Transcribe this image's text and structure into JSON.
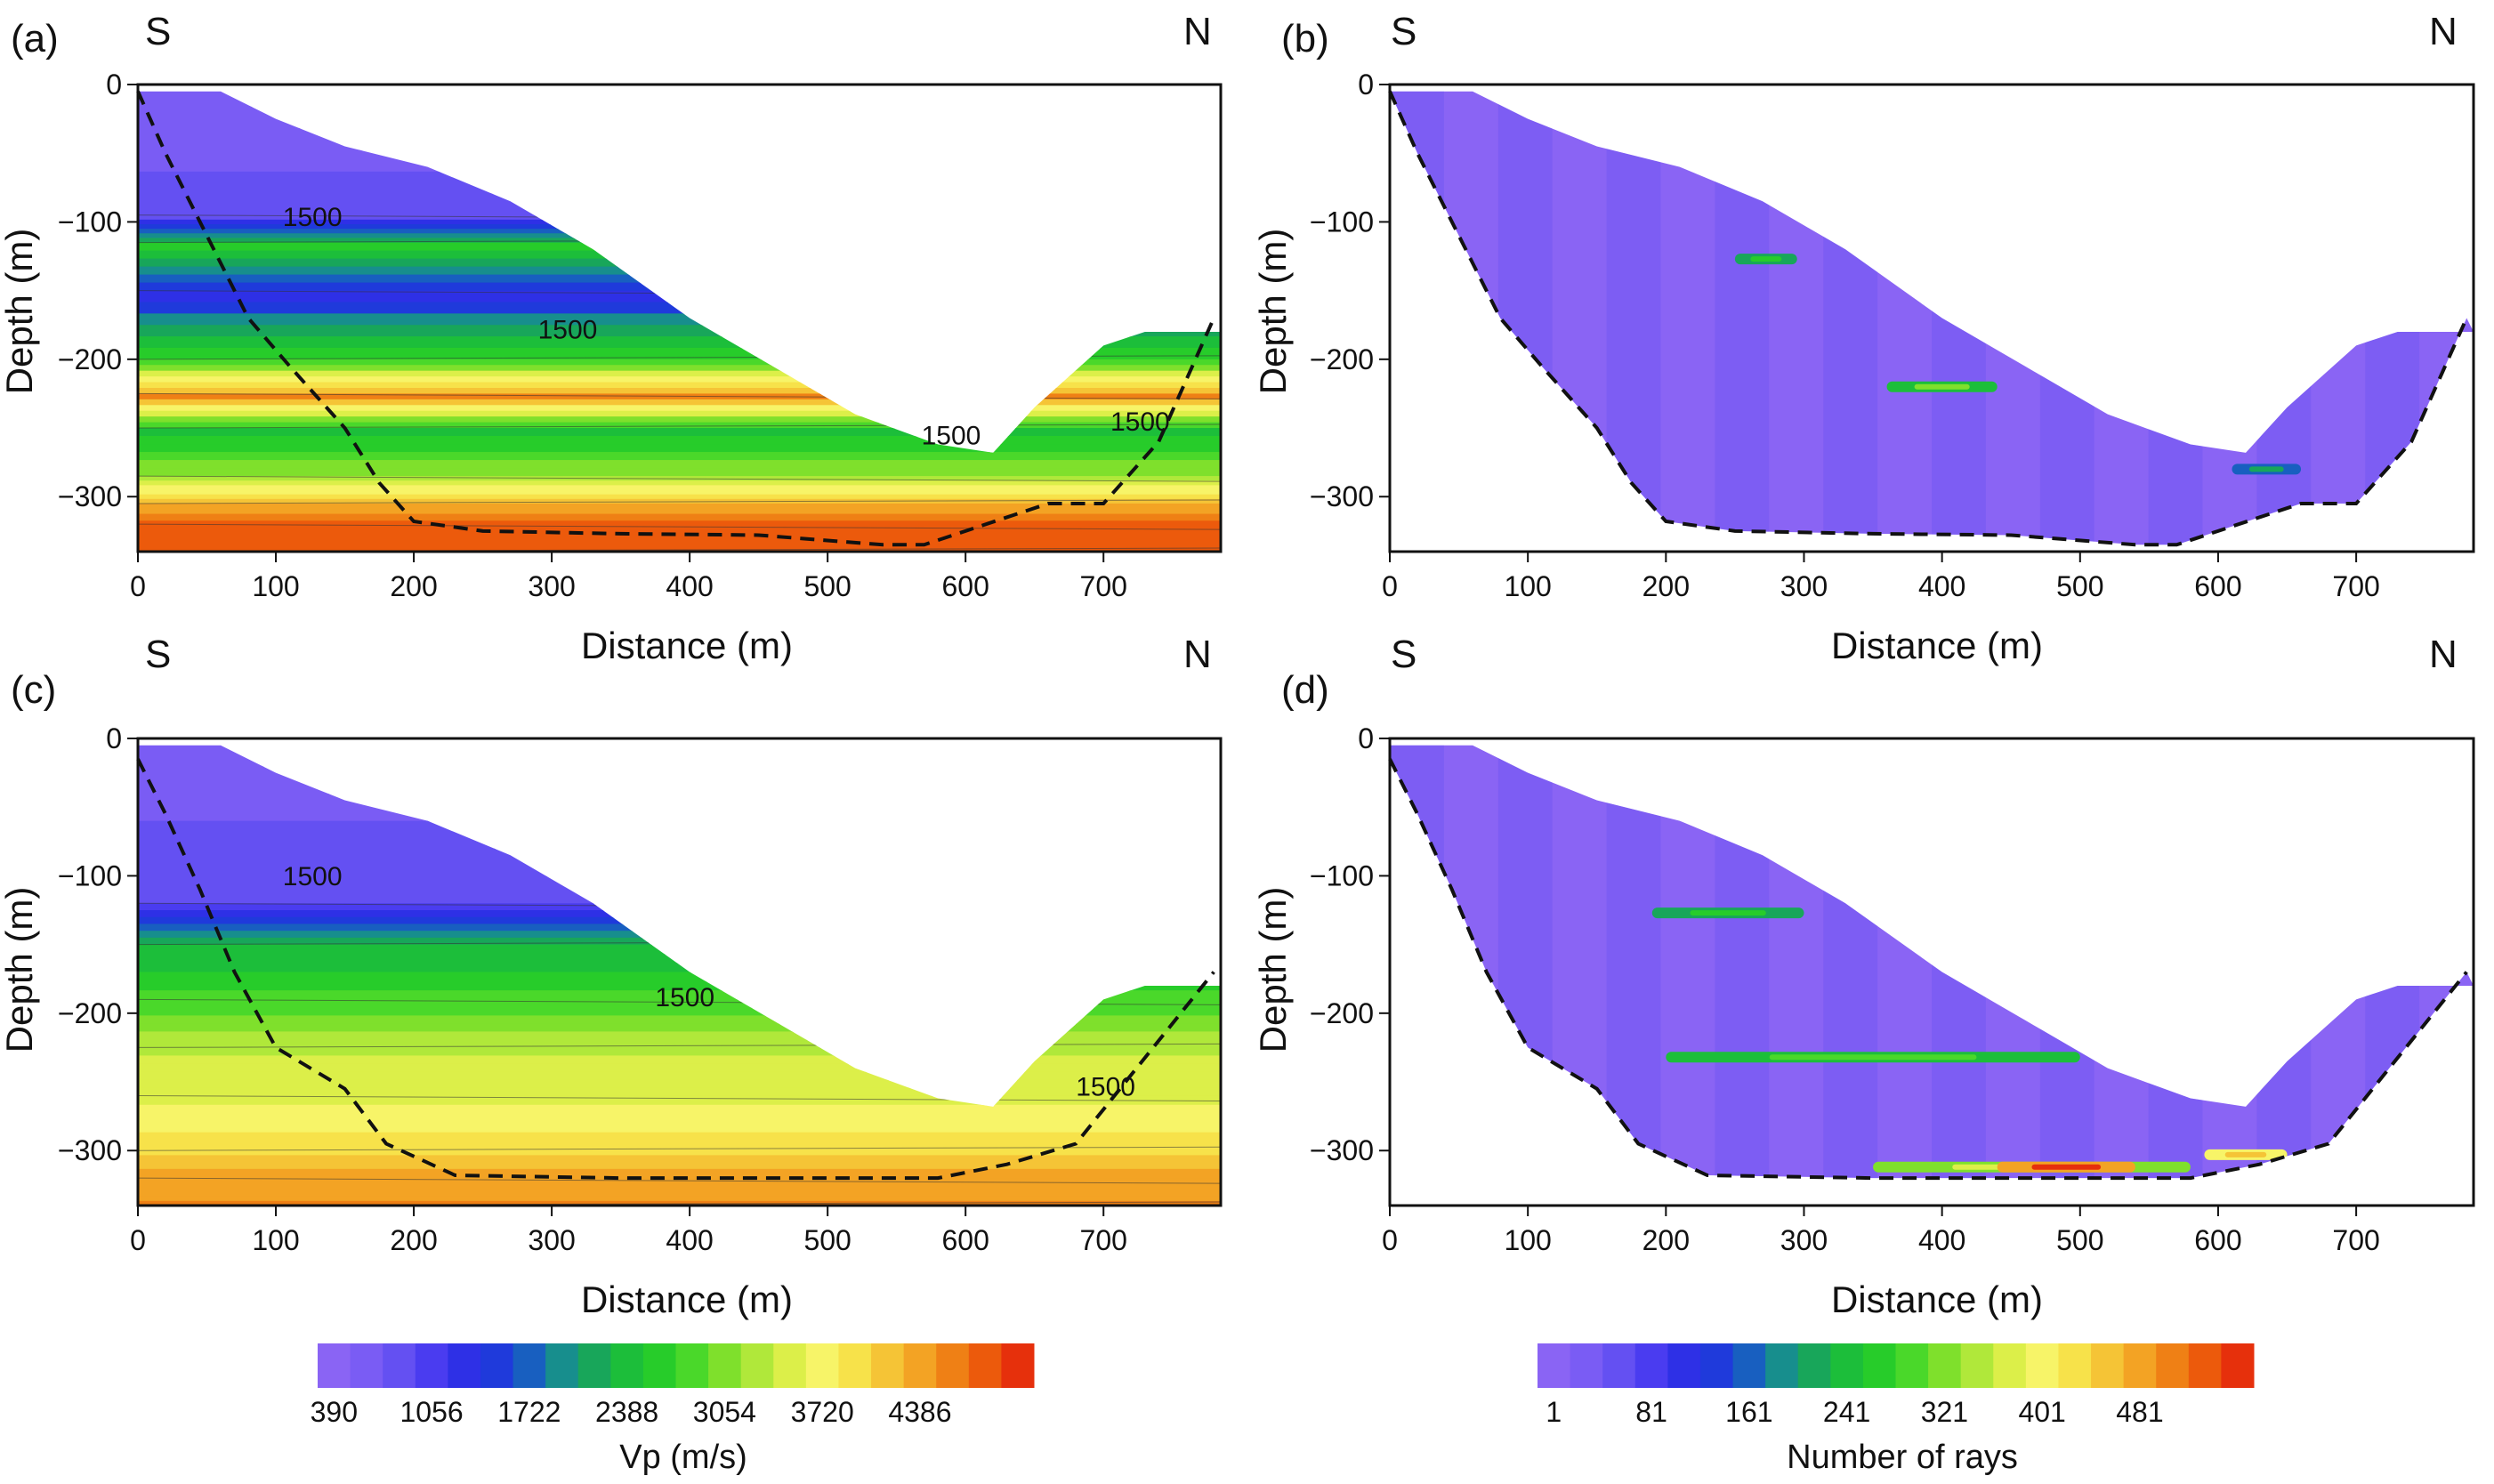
{
  "figure": {
    "panels": [
      {
        "id": "a",
        "label": "(a)",
        "left": "S",
        "right": "N",
        "type": "velocity"
      },
      {
        "id": "b",
        "label": "(b)",
        "left": "S",
        "right": "N",
        "type": "rays"
      },
      {
        "id": "c",
        "label": "(c)",
        "left": "S",
        "right": "N",
        "type": "velocity"
      },
      {
        "id": "d",
        "label": "(d)",
        "left": "S",
        "right": "N",
        "type": "rays"
      }
    ]
  },
  "chart_data": [
    {
      "panel": "a",
      "type": "heatmap",
      "xlabel": "Distance (m)",
      "ylabel": "Depth (m)",
      "xlim": [
        0,
        785
      ],
      "ylim": [
        -340,
        0
      ],
      "xticks": [
        0,
        100,
        200,
        300,
        400,
        500,
        600,
        700
      ],
      "yticks": [
        0,
        -100,
        -200,
        -300
      ],
      "contour_labels": [
        {
          "text": "1500",
          "x": 105,
          "y": -103
        },
        {
          "text": "1500",
          "x": 290,
          "y": -185
        },
        {
          "text": "1500",
          "x": 568,
          "y": -262
        },
        {
          "text": "1500",
          "x": 705,
          "y": -252
        }
      ],
      "surface": [
        [
          0,
          -5
        ],
        [
          60,
          -5
        ],
        [
          100,
          -25
        ],
        [
          150,
          -45
        ],
        [
          210,
          -60
        ],
        [
          270,
          -85
        ],
        [
          330,
          -120
        ],
        [
          400,
          -170
        ],
        [
          460,
          -205
        ],
        [
          520,
          -240
        ],
        [
          580,
          -262
        ],
        [
          620,
          -268
        ],
        [
          650,
          -235
        ],
        [
          700,
          -190
        ],
        [
          730,
          -180
        ],
        [
          785,
          -180
        ]
      ],
      "boundary_dashed": [
        [
          0,
          -5
        ],
        [
          20,
          -50
        ],
        [
          50,
          -110
        ],
        [
          80,
          -170
        ],
        [
          110,
          -205
        ],
        [
          150,
          -250
        ],
        [
          175,
          -290
        ],
        [
          200,
          -318
        ],
        [
          250,
          -325
        ],
        [
          350,
          -327
        ],
        [
          450,
          -328
        ],
        [
          540,
          -335
        ],
        [
          570,
          -335
        ],
        [
          600,
          -325
        ],
        [
          660,
          -305
        ],
        [
          700,
          -305
        ],
        [
          740,
          -260
        ],
        [
          780,
          -170
        ]
      ],
      "velocity_layers": [
        [
          0,
          600
        ],
        [
          -95,
          1000
        ],
        [
          -115,
          2500
        ],
        [
          -150,
          1400
        ],
        [
          -200,
          2800
        ],
        [
          -225,
          4400
        ],
        [
          -250,
          2400
        ],
        [
          -285,
          3200
        ],
        [
          -305,
          4200
        ],
        [
          -320,
          4700
        ],
        [
          -340,
          4800
        ]
      ]
    },
    {
      "panel": "b",
      "type": "heatmap",
      "xlabel": "Distance (m)",
      "ylabel": "Depth (m)",
      "xlim": [
        0,
        785
      ],
      "ylim": [
        -340,
        0
      ],
      "xticks": [
        0,
        100,
        200,
        300,
        400,
        500,
        600,
        700
      ],
      "yticks": [
        0,
        -100,
        -200,
        -300
      ],
      "surface": [
        [
          0,
          -5
        ],
        [
          60,
          -5
        ],
        [
          100,
          -25
        ],
        [
          150,
          -45
        ],
        [
          210,
          -60
        ],
        [
          270,
          -85
        ],
        [
          330,
          -120
        ],
        [
          400,
          -170
        ],
        [
          460,
          -205
        ],
        [
          520,
          -240
        ],
        [
          580,
          -262
        ],
        [
          620,
          -268
        ],
        [
          650,
          -235
        ],
        [
          700,
          -190
        ],
        [
          730,
          -180
        ],
        [
          785,
          -180
        ]
      ],
      "boundary_dashed": [
        [
          0,
          -5
        ],
        [
          20,
          -50
        ],
        [
          50,
          -110
        ],
        [
          80,
          -170
        ],
        [
          110,
          -205
        ],
        [
          150,
          -250
        ],
        [
          175,
          -290
        ],
        [
          200,
          -318
        ],
        [
          250,
          -325
        ],
        [
          350,
          -327
        ],
        [
          450,
          -328
        ],
        [
          540,
          -335
        ],
        [
          570,
          -335
        ],
        [
          600,
          -325
        ],
        [
          660,
          -305
        ],
        [
          700,
          -305
        ],
        [
          740,
          -260
        ],
        [
          780,
          -170
        ]
      ],
      "ray_streaks": [
        {
          "x0": 250,
          "x1": 295,
          "y": -127,
          "level": 200
        },
        {
          "x0": 360,
          "x1": 440,
          "y": -220,
          "level": 240
        },
        {
          "x0": 610,
          "x1": 660,
          "y": -280,
          "level": 150
        }
      ]
    },
    {
      "panel": "c",
      "type": "heatmap",
      "xlabel": "Distance (m)",
      "ylabel": "Depth (m)",
      "xlim": [
        0,
        785
      ],
      "ylim": [
        -340,
        0
      ],
      "xticks": [
        0,
        100,
        200,
        300,
        400,
        500,
        600,
        700
      ],
      "yticks": [
        0,
        -100,
        -200,
        -300
      ],
      "contour_labels": [
        {
          "text": "1500",
          "x": 105,
          "y": -107
        },
        {
          "text": "1500",
          "x": 375,
          "y": -195
        },
        {
          "text": "1500",
          "x": 680,
          "y": -260
        }
      ],
      "surface": [
        [
          0,
          -5
        ],
        [
          60,
          -5
        ],
        [
          100,
          -25
        ],
        [
          150,
          -45
        ],
        [
          210,
          -60
        ],
        [
          270,
          -85
        ],
        [
          330,
          -120
        ],
        [
          400,
          -170
        ],
        [
          460,
          -205
        ],
        [
          520,
          -240
        ],
        [
          580,
          -262
        ],
        [
          620,
          -268
        ],
        [
          650,
          -235
        ],
        [
          700,
          -190
        ],
        [
          730,
          -180
        ],
        [
          785,
          -180
        ]
      ],
      "boundary_dashed": [
        [
          0,
          -15
        ],
        [
          20,
          -55
        ],
        [
          45,
          -110
        ],
        [
          70,
          -170
        ],
        [
          100,
          -225
        ],
        [
          150,
          -255
        ],
        [
          180,
          -295
        ],
        [
          230,
          -318
        ],
        [
          350,
          -320
        ],
        [
          500,
          -320
        ],
        [
          580,
          -320
        ],
        [
          630,
          -310
        ],
        [
          680,
          -295
        ],
        [
          720,
          -245
        ],
        [
          780,
          -170
        ]
      ],
      "velocity_layers": [
        [
          0,
          600
        ],
        [
          -120,
          1100
        ],
        [
          -150,
          2300
        ],
        [
          -190,
          2800
        ],
        [
          -225,
          3300
        ],
        [
          -260,
          3500
        ],
        [
          -300,
          3900
        ],
        [
          -320,
          4300
        ],
        [
          -340,
          4400
        ]
      ]
    },
    {
      "panel": "d",
      "type": "heatmap",
      "xlabel": "Distance (m)",
      "ylabel": "Depth (m)",
      "xlim": [
        0,
        785
      ],
      "ylim": [
        -340,
        0
      ],
      "xticks": [
        0,
        100,
        200,
        300,
        400,
        500,
        600,
        700
      ],
      "yticks": [
        0,
        -100,
        -200,
        -300
      ],
      "surface": [
        [
          0,
          -5
        ],
        [
          60,
          -5
        ],
        [
          100,
          -25
        ],
        [
          150,
          -45
        ],
        [
          210,
          -60
        ],
        [
          270,
          -85
        ],
        [
          330,
          -120
        ],
        [
          400,
          -170
        ],
        [
          460,
          -205
        ],
        [
          520,
          -240
        ],
        [
          580,
          -262
        ],
        [
          620,
          -268
        ],
        [
          650,
          -235
        ],
        [
          700,
          -190
        ],
        [
          730,
          -180
        ],
        [
          785,
          -180
        ]
      ],
      "boundary_dashed": [
        [
          0,
          -15
        ],
        [
          20,
          -55
        ],
        [
          45,
          -110
        ],
        [
          70,
          -170
        ],
        [
          100,
          -225
        ],
        [
          150,
          -255
        ],
        [
          180,
          -295
        ],
        [
          230,
          -318
        ],
        [
          350,
          -320
        ],
        [
          500,
          -320
        ],
        [
          580,
          -320
        ],
        [
          630,
          -310
        ],
        [
          680,
          -295
        ],
        [
          720,
          -245
        ],
        [
          780,
          -170
        ]
      ],
      "ray_streaks": [
        {
          "x0": 190,
          "x1": 300,
          "y": -127,
          "level": 200
        },
        {
          "x0": 200,
          "x1": 500,
          "y": -232,
          "level": 230
        },
        {
          "x0": 350,
          "x1": 580,
          "y": -312,
          "level": 300
        },
        {
          "x0": 440,
          "x1": 540,
          "y": -312,
          "level": 460
        },
        {
          "x0": 590,
          "x1": 650,
          "y": -303,
          "level": 380
        }
      ]
    },
    {
      "type": "colorbar",
      "label": "Vp (m/s)",
      "range": [
        390,
        5000
      ],
      "n_bins": 22,
      "tick_labels": [
        "390",
        "1056",
        "1722",
        "2388",
        "3054",
        "3720",
        "4386"
      ]
    },
    {
      "type": "colorbar",
      "label": "Number of rays",
      "range": [
        1,
        540
      ],
      "n_bins": 22,
      "tick_labels": [
        "1",
        "81",
        "161",
        "241",
        "321",
        "401",
        "481"
      ]
    }
  ],
  "colors": {
    "palette": [
      "#8a64f4",
      "#7a5cf4",
      "#6450f2",
      "#4a3cf0",
      "#2e30e6",
      "#1f3adb",
      "#185fc0",
      "#178e8d",
      "#18a65a",
      "#1cbe3a",
      "#27cc2a",
      "#4ad82a",
      "#7fe02c",
      "#b0e83a",
      "#dcef49",
      "#f7f468",
      "#f7e24a",
      "#f5c436",
      "#f3a324",
      "#ef8015",
      "#ec5a0c",
      "#e6300c"
    ],
    "axis": "#111111",
    "boundary": "#111111"
  }
}
